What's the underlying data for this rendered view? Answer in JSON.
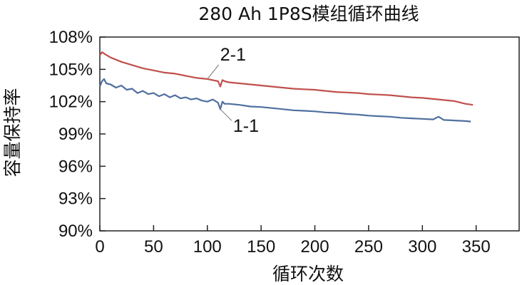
{
  "chart_data": {
    "type": "line",
    "title": "280 Ah 1P8S模组循环曲线",
    "xlabel": "循环次数",
    "ylabel": "容量保持率",
    "xlim": [
      0,
      390
    ],
    "ylim": [
      90,
      108
    ],
    "x_ticks": [
      0,
      50,
      100,
      150,
      200,
      250,
      300,
      350
    ],
    "y_ticks": [
      90,
      93,
      96,
      99,
      102,
      105,
      108
    ],
    "x_tick_labels": [
      "0",
      "50",
      "100",
      "150",
      "200",
      "250",
      "300",
      "350"
    ],
    "y_tick_labels": [
      "90%",
      "93%",
      "96%",
      "99%",
      "102%",
      "105%",
      "108%"
    ],
    "grid": false,
    "series": [
      {
        "name": "2-1",
        "color": "#c0504d",
        "x": [
          0,
          2,
          5,
          10,
          20,
          30,
          40,
          50,
          60,
          70,
          80,
          90,
          100,
          110,
          112,
          114,
          116,
          120,
          130,
          140,
          150,
          160,
          170,
          180,
          190,
          200,
          210,
          220,
          230,
          240,
          250,
          260,
          270,
          280,
          290,
          300,
          310,
          320,
          330,
          340,
          347
        ],
        "y": [
          106.3,
          106.6,
          106.4,
          106.1,
          105.7,
          105.4,
          105.1,
          104.9,
          104.7,
          104.6,
          104.4,
          104.2,
          104.1,
          103.9,
          103.4,
          104.0,
          103.9,
          103.8,
          103.7,
          103.6,
          103.5,
          103.4,
          103.3,
          103.2,
          103.15,
          103.1,
          103.0,
          102.9,
          102.85,
          102.8,
          102.7,
          102.65,
          102.6,
          102.5,
          102.4,
          102.35,
          102.25,
          102.15,
          102.05,
          101.8,
          101.7
        ]
      },
      {
        "name": "1-1",
        "color": "#4f6f9e",
        "x": [
          0,
          2,
          4,
          6,
          10,
          15,
          20,
          25,
          30,
          35,
          40,
          45,
          50,
          55,
          60,
          65,
          70,
          75,
          80,
          85,
          90,
          95,
          100,
          105,
          110,
          112,
          114,
          116,
          120,
          130,
          140,
          150,
          160,
          170,
          180,
          190,
          200,
          210,
          220,
          230,
          240,
          250,
          260,
          270,
          280,
          290,
          300,
          310,
          315,
          320,
          330,
          340,
          345
        ],
        "y": [
          103.4,
          103.9,
          104.1,
          103.7,
          103.6,
          103.3,
          103.5,
          103.1,
          103.2,
          102.8,
          103.0,
          102.7,
          102.8,
          102.5,
          102.7,
          102.4,
          102.6,
          102.3,
          102.4,
          102.2,
          102.3,
          102.1,
          102.0,
          102.2,
          101.9,
          101.3,
          102.0,
          101.8,
          101.8,
          101.7,
          101.55,
          101.5,
          101.4,
          101.3,
          101.2,
          101.15,
          101.1,
          101.0,
          100.95,
          100.85,
          100.8,
          100.7,
          100.65,
          100.6,
          100.5,
          100.45,
          100.4,
          100.35,
          100.6,
          100.3,
          100.25,
          100.2,
          100.15
        ]
      }
    ],
    "annotations": [
      {
        "text": "2-1",
        "series": "2-1",
        "point_x": 100
      },
      {
        "text": "1-1",
        "series": "1-1",
        "point_x": 112
      }
    ]
  }
}
